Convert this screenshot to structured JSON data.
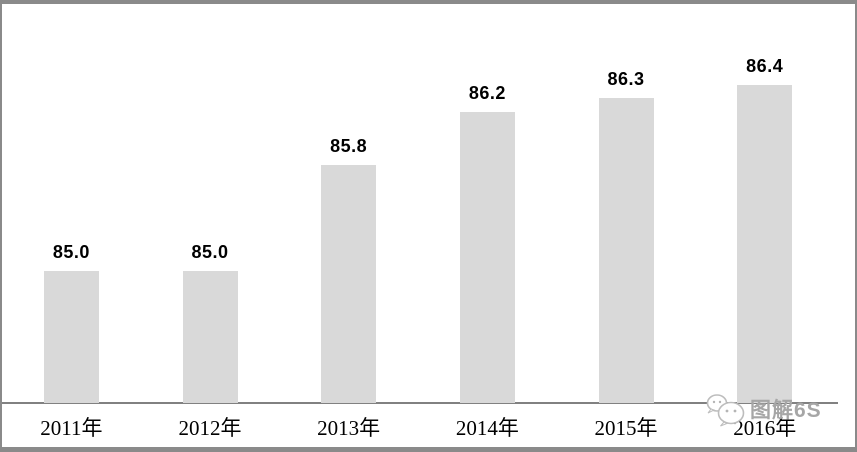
{
  "chart_data": {
    "type": "bar",
    "categories": [
      "2011年",
      "2012年",
      "2013年",
      "2014年",
      "2015年",
      "2016年"
    ],
    "values": [
      85.0,
      85.0,
      85.8,
      86.2,
      86.3,
      86.4
    ],
    "data_labels": [
      "85.0",
      "85.0",
      "85.8",
      "86.2",
      "86.3",
      "86.4"
    ],
    "title": "",
    "xlabel": "",
    "ylabel": "",
    "ylim": [
      84,
      87
    ],
    "grid": false,
    "legend": null,
    "bar_color": "#d9d9d9",
    "value_label_color": "#000000",
    "axis_line_color": "#818181",
    "category_label_color": "#000000"
  },
  "watermark": {
    "text": "图解6S",
    "icon": "wechat-chat-bubbles-icon",
    "color": "#a6a6a6"
  },
  "frame": {
    "border_color": "#8a8a8a",
    "background_color": "#ffffff"
  }
}
